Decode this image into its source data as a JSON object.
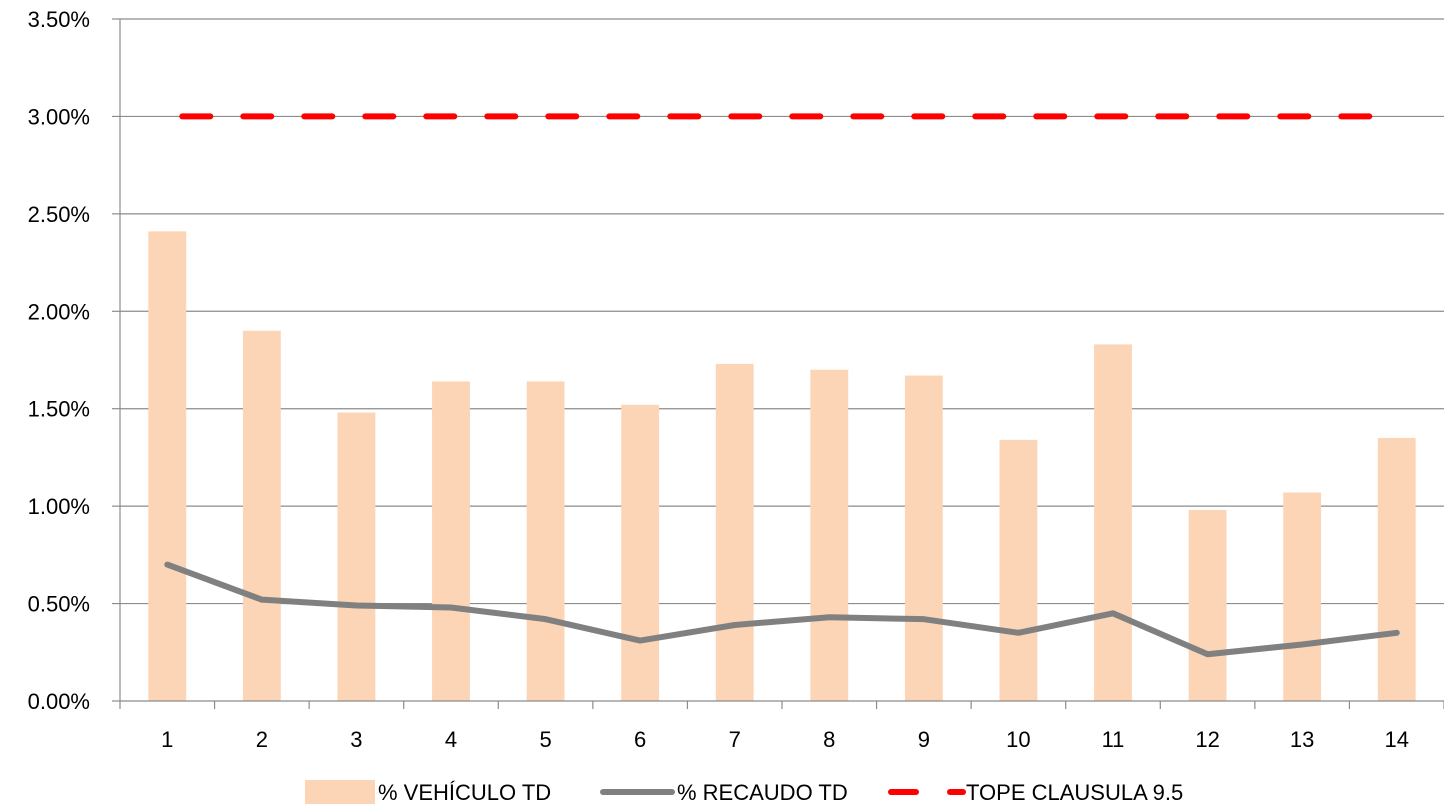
{
  "chart_data": {
    "type": "bar",
    "title": "",
    "xlabel": "",
    "ylabel": "",
    "categories": [
      "1",
      "2",
      "3",
      "4",
      "5",
      "6",
      "7",
      "8",
      "9",
      "10",
      "11",
      "12",
      "13",
      "14"
    ],
    "ylim": [
      0,
      0.035
    ],
    "yticks": [
      {
        "value": 0.0,
        "label": "0.00%"
      },
      {
        "value": 0.005,
        "label": "0.50%"
      },
      {
        "value": 0.01,
        "label": "1.00%"
      },
      {
        "value": 0.015,
        "label": "1.50%"
      },
      {
        "value": 0.02,
        "label": "2.00%"
      },
      {
        "value": 0.025,
        "label": "2.50%"
      },
      {
        "value": 0.03,
        "label": "3.00%"
      },
      {
        "value": 0.035,
        "label": "3.50%"
      }
    ],
    "grid": "horizontal",
    "legend_position": "bottom",
    "series": [
      {
        "name": "% VEHÍCULO TD",
        "kind": "bar",
        "color": "#FBD5B5",
        "values": [
          0.0241,
          0.019,
          0.0148,
          0.0164,
          0.0164,
          0.0152,
          0.0173,
          0.017,
          0.0167,
          0.0134,
          0.0183,
          0.0098,
          0.0107,
          0.0135
        ]
      },
      {
        "name": "% RECAUDO TD",
        "kind": "line",
        "color": "#808080",
        "values": [
          0.007,
          0.0052,
          0.0049,
          0.0048,
          0.0042,
          0.0031,
          0.0039,
          0.0043,
          0.0042,
          0.0035,
          0.0045,
          0.0024,
          0.0029,
          0.0035
        ]
      },
      {
        "name": "TOPE CLAUSULA 9.5",
        "kind": "dashed-line",
        "color": "#FF0000",
        "values": [
          0.03,
          0.03,
          0.03,
          0.03,
          0.03,
          0.03,
          0.03,
          0.03,
          0.03,
          0.03,
          0.03,
          0.03,
          0.03,
          0.03
        ]
      }
    ]
  }
}
